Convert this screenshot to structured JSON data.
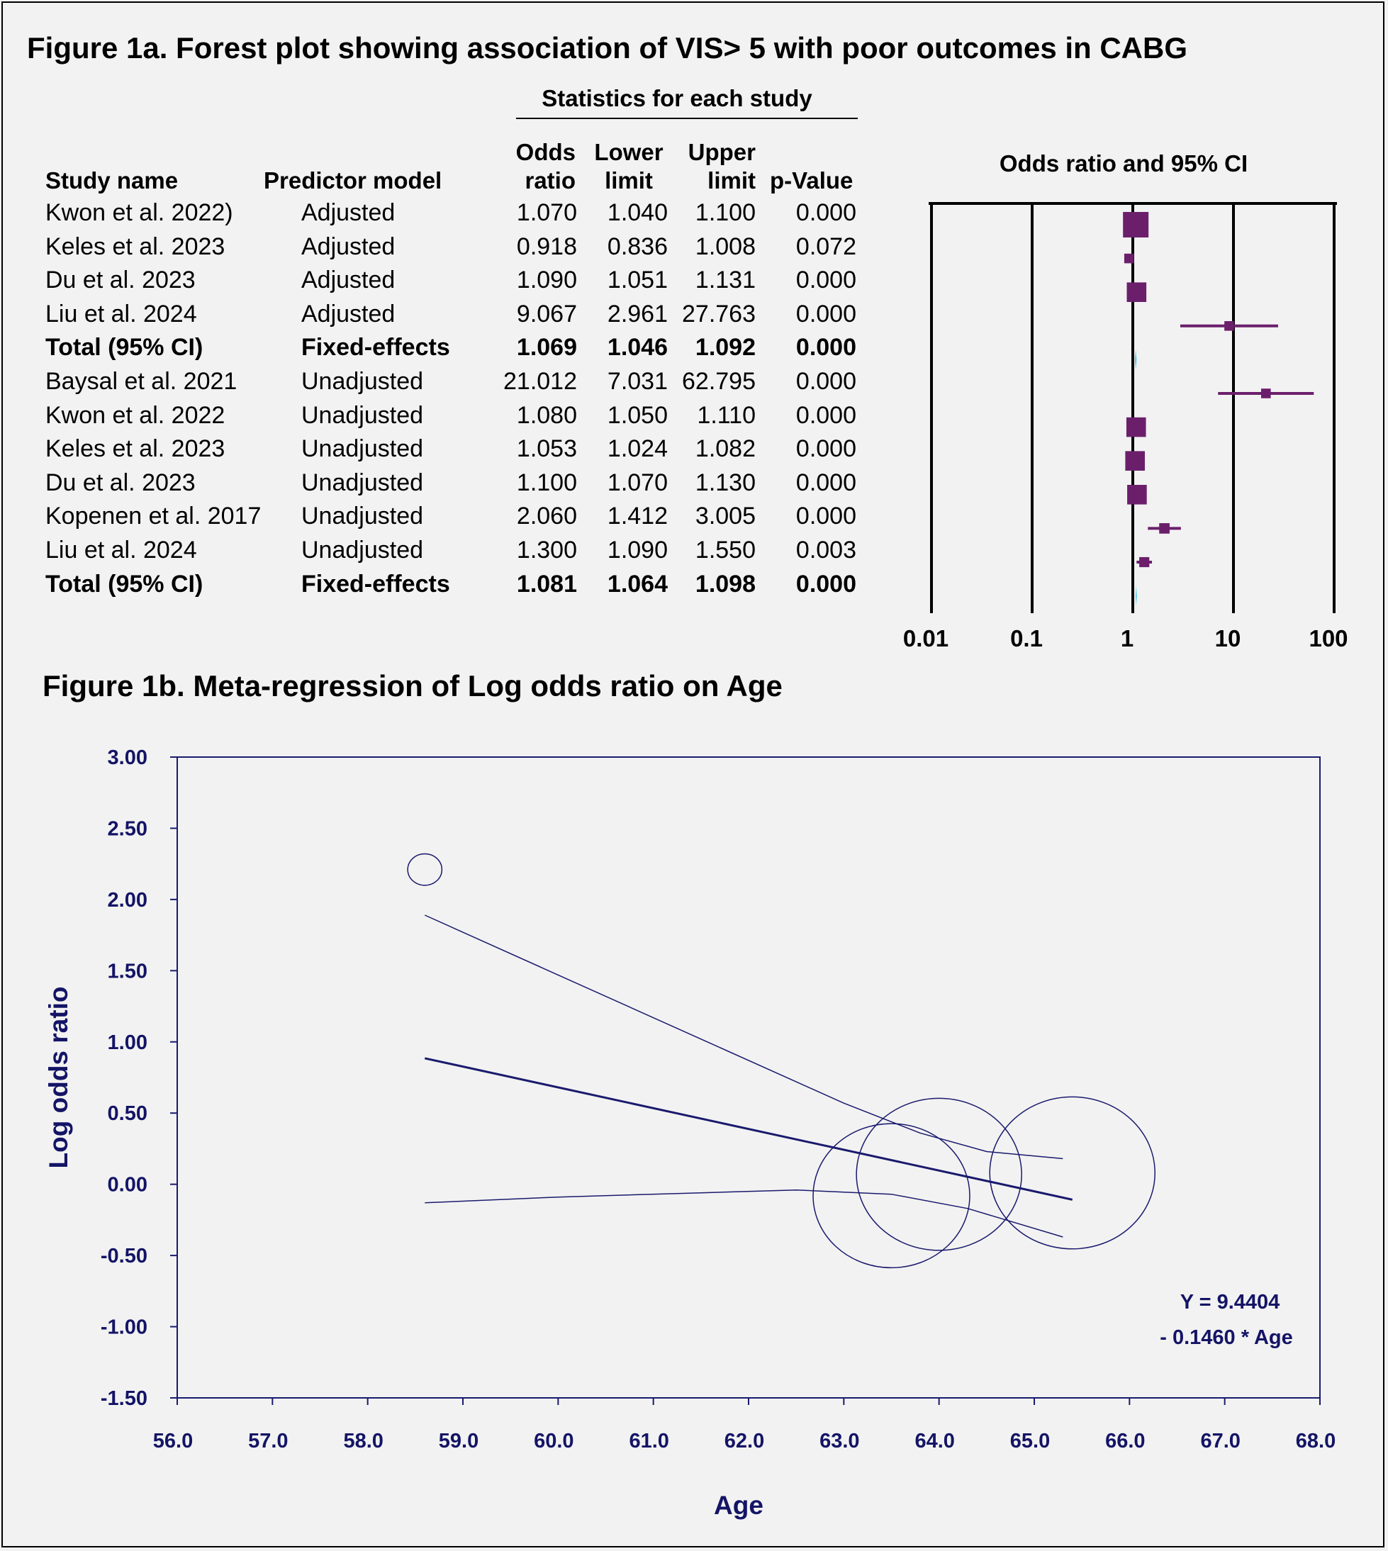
{
  "figure_1a": {
    "title": "Figure 1a. Forest plot showing association of VIS> 5 with poor outcomes in CABG",
    "stats_header": "Statistics for each study",
    "columns": {
      "study_name": "Study name",
      "predictor_model": "Predictor model",
      "odds_ratio": [
        "Odds",
        "ratio"
      ],
      "lower_limit": [
        "Lower",
        "limit"
      ],
      "upper_limit": [
        "Upper",
        "limit"
      ],
      "p_value": "p-Value",
      "plot_header": "Odds ratio and 95% CI"
    },
    "rows": [
      {
        "study": "Kwon et al. 2022)",
        "model": "Adjusted",
        "or": "1.070",
        "lower": "1.040",
        "upper": "1.100",
        "p": "0.000",
        "bold": false
      },
      {
        "study": "Keles et al. 2023",
        "model": "Adjusted",
        "or": "0.918",
        "lower": "0.836",
        "upper": "1.008",
        "p": "0.072",
        "bold": false
      },
      {
        "study": "Du et al. 2023",
        "model": "Adjusted",
        "or": "1.090",
        "lower": "1.051",
        "upper": "1.131",
        "p": "0.000",
        "bold": false
      },
      {
        "study": "Liu et al. 2024",
        "model": "Adjusted",
        "or": "9.067",
        "lower": "2.961",
        "upper": "27.763",
        "p": "0.000",
        "bold": false
      },
      {
        "study": "Total (95% CI)",
        "model": "Fixed-effects",
        "or": "1.069",
        "lower": "1.046",
        "upper": "1.092",
        "p": "0.000",
        "bold": true
      },
      {
        "study": "Baysal et al. 2021",
        "model": "Unadjusted",
        "or": "21.012",
        "lower": "7.031",
        "upper": "62.795",
        "p": "0.000",
        "bold": false
      },
      {
        "study": "Kwon et al. 2022",
        "model": "Unadjusted",
        "or": "1.080",
        "lower": "1.050",
        "upper": "1.110",
        "p": "0.000",
        "bold": false
      },
      {
        "study": "Keles et al. 2023",
        "model": "Unadjusted",
        "or": "1.053",
        "lower": "1.024",
        "upper": "1.082",
        "p": "0.000",
        "bold": false
      },
      {
        "study": "Du et al. 2023",
        "model": "Unadjusted",
        "or": "1.100",
        "lower": "1.070",
        "upper": "1.130",
        "p": "0.000",
        "bold": false
      },
      {
        "study": "Kopenen et al. 2017",
        "model": "Unadjusted",
        "or": "2.060",
        "lower": "1.412",
        "upper": "3.005",
        "p": "0.000",
        "bold": false
      },
      {
        "study": "Liu et al. 2024",
        "model": "Unadjusted",
        "or": "1.300",
        "lower": "1.090",
        "upper": "1.550",
        "p": "0.003",
        "bold": false
      },
      {
        "study": "Total (95% CI)",
        "model": "Fixed-effects",
        "or": "1.081",
        "lower": "1.064",
        "upper": "1.098",
        "p": "0.000",
        "bold": true
      }
    ]
  },
  "chart_data": [
    {
      "type": "forest",
      "title": "Odds ratio and 95% CI",
      "x_scale": "log",
      "xlim": [
        0.01,
        100
      ],
      "x_ticks": [
        0.01,
        0.1,
        1,
        10,
        100
      ],
      "x_tick_labels": [
        "0.01",
        "0.1",
        "1",
        "10",
        "100"
      ],
      "points": [
        {
          "or": 1.07,
          "lower": 1.04,
          "upper": 1.1,
          "weight": 5,
          "kind": "study"
        },
        {
          "or": 0.918,
          "lower": 0.836,
          "upper": 1.008,
          "weight": 1,
          "kind": "study"
        },
        {
          "or": 1.09,
          "lower": 1.051,
          "upper": 1.131,
          "weight": 3.5,
          "kind": "study"
        },
        {
          "or": 9.067,
          "lower": 2.961,
          "upper": 27.763,
          "weight": 1,
          "kind": "study"
        },
        {
          "or": 1.069,
          "lower": 1.046,
          "upper": 1.092,
          "weight": 0,
          "kind": "total"
        },
        {
          "or": 21.012,
          "lower": 7.031,
          "upper": 62.795,
          "weight": 1,
          "kind": "study"
        },
        {
          "or": 1.08,
          "lower": 1.05,
          "upper": 1.11,
          "weight": 3.5,
          "kind": "study"
        },
        {
          "or": 1.053,
          "lower": 1.024,
          "upper": 1.082,
          "weight": 3.5,
          "kind": "study"
        },
        {
          "or": 1.1,
          "lower": 1.07,
          "upper": 1.13,
          "weight": 3.5,
          "kind": "study"
        },
        {
          "or": 2.06,
          "lower": 1.412,
          "upper": 3.005,
          "weight": 1.2,
          "kind": "study"
        },
        {
          "or": 1.3,
          "lower": 1.09,
          "upper": 1.55,
          "weight": 1.1,
          "kind": "study"
        },
        {
          "or": 1.081,
          "lower": 1.064,
          "upper": 1.098,
          "weight": 0,
          "kind": "total"
        }
      ],
      "colors": {
        "study": "#6b1f6b",
        "total": "#5bc8e8",
        "axis": "#000000"
      }
    },
    {
      "type": "scatter",
      "title": "Figure 1b. Meta-regression of Log odds ratio on Age",
      "xlabel": "Age",
      "ylabel": "Log odds ratio",
      "xlim": [
        56.0,
        68.0
      ],
      "ylim": [
        -1.5,
        3.0
      ],
      "x_ticks": [
        "56.0",
        "57.0",
        "58.0",
        "59.0",
        "60.0",
        "61.0",
        "62.0",
        "63.0",
        "64.0",
        "65.0",
        "66.0",
        "67.0",
        "68.0"
      ],
      "y_ticks": [
        "3.00",
        "2.50",
        "2.00",
        "1.50",
        "1.00",
        "0.50",
        "0.00",
        "-0.50",
        "-1.00",
        "-1.50"
      ],
      "points": [
        {
          "x": 58.6,
          "y": 2.21,
          "r": 0.12
        },
        {
          "x": 63.5,
          "y": -0.08,
          "r": 0.55
        },
        {
          "x": 64.0,
          "y": 0.07,
          "r": 0.58
        },
        {
          "x": 65.4,
          "y": 0.08,
          "r": 0.58
        }
      ],
      "regression": {
        "intercept": 9.4404,
        "slope": -0.146,
        "x_range": [
          58.6,
          65.4
        ]
      },
      "ci_upper": [
        [
          58.6,
          1.89
        ],
        [
          60.0,
          1.47
        ],
        [
          61.5,
          1.02
        ],
        [
          63.0,
          0.57
        ],
        [
          63.8,
          0.36
        ],
        [
          64.5,
          0.23
        ],
        [
          65.3,
          0.18
        ]
      ],
      "ci_lower": [
        [
          58.6,
          -0.13
        ],
        [
          60.0,
          -0.09
        ],
        [
          61.5,
          -0.06
        ],
        [
          62.5,
          -0.04
        ],
        [
          63.5,
          -0.07
        ],
        [
          64.3,
          -0.17
        ],
        [
          65.3,
          -0.37
        ]
      ],
      "equation": [
        "Y = 9.4404",
        "- 0.1460 * Age"
      ],
      "colors": {
        "series": "#1a1a6e",
        "text": "#141466"
      }
    }
  ]
}
